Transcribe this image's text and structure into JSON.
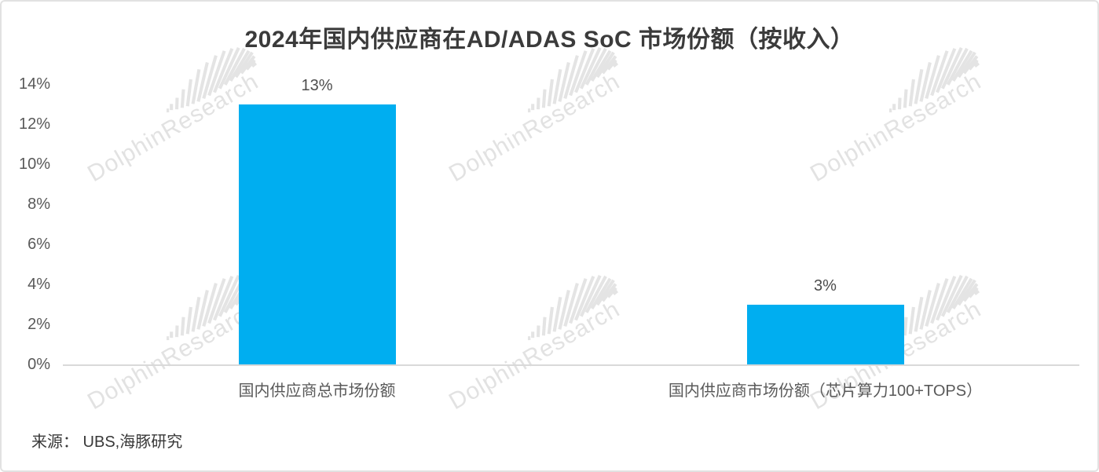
{
  "chart_data": {
    "type": "bar",
    "title": "2024年国内供应商在AD/ADAS SoC 市场份额（按收入）",
    "categories": [
      "国内供应商总市场份额",
      "国内供应商市场份额（芯片算力100+TOPS）"
    ],
    "values": [
      13,
      3
    ],
    "value_labels": [
      "13%",
      "3%"
    ],
    "xlabel": "",
    "ylabel": "",
    "ylim": [
      0,
      14
    ],
    "yticks": [
      0,
      2,
      4,
      6,
      8,
      10,
      12,
      14
    ],
    "ytick_labels": [
      "0%",
      "2%",
      "4%",
      "6%",
      "8%",
      "10%",
      "12%",
      "14%"
    ],
    "grid": false,
    "legend": false,
    "source": "来源： UBS,海豚研究",
    "watermark": "DolphinResearch",
    "colors": {
      "bar": "#00AEF0",
      "title_text": "#3b3b3b",
      "axis_text": "#595959",
      "axis_line": "#d9d9d9",
      "watermark": "#e2e2e2"
    }
  }
}
